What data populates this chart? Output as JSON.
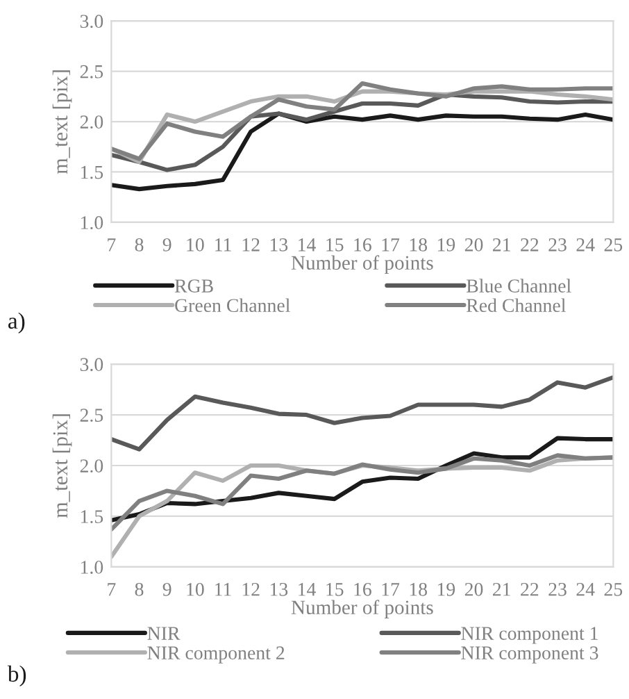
{
  "chart_data": [
    {
      "type": "line",
      "xlabel": "Number of points",
      "ylabel": "m_text [pix]",
      "categories": [
        "7",
        "8",
        "9",
        "10",
        "11",
        "12",
        "13",
        "14",
        "15",
        "16",
        "17",
        "18",
        "19",
        "20",
        "21",
        "22",
        "23",
        "24",
        "25"
      ],
      "ylim": [
        1.0,
        3.0
      ],
      "yticks": [
        {
          "value": 1.0,
          "label": "1.0"
        },
        {
          "value": 1.5,
          "label": "1.5"
        },
        {
          "value": 2.0,
          "label": "2.0"
        },
        {
          "value": 2.5,
          "label": "2.5"
        },
        {
          "value": 3.0,
          "label": "3.0"
        }
      ],
      "grid": "y",
      "legend": "bottom",
      "line_style": "solid",
      "annotations": [
        "a)"
      ],
      "series": [
        {
          "name": "RGB",
          "color": "#1a1a1a",
          "values": [
            1.37,
            1.33,
            1.36,
            1.38,
            1.42,
            1.9,
            2.08,
            2.0,
            2.05,
            2.02,
            2.06,
            2.02,
            2.06,
            2.05,
            2.05,
            2.03,
            2.02,
            2.07,
            2.02
          ]
        },
        {
          "name": "Blue Channel",
          "color": "#595959",
          "values": [
            1.67,
            1.6,
            1.52,
            1.57,
            1.75,
            2.05,
            2.08,
            2.02,
            2.1,
            2.18,
            2.18,
            2.16,
            2.27,
            2.25,
            2.24,
            2.2,
            2.19,
            2.2,
            2.2
          ]
        },
        {
          "name": "Green Channel",
          "color": "#b0b0b0",
          "values": [
            1.73,
            1.6,
            2.07,
            2.0,
            2.1,
            2.2,
            2.25,
            2.25,
            2.2,
            2.3,
            2.3,
            2.28,
            2.27,
            2.3,
            2.3,
            2.3,
            2.27,
            2.25,
            2.22
          ]
        },
        {
          "name": "Red Channel",
          "color": "#808080",
          "values": [
            1.73,
            1.63,
            1.98,
            1.9,
            1.85,
            2.05,
            2.22,
            2.15,
            2.12,
            2.38,
            2.32,
            2.28,
            2.25,
            2.33,
            2.35,
            2.32,
            2.32,
            2.33,
            2.33
          ]
        }
      ]
    },
    {
      "type": "line",
      "xlabel": "Number of points",
      "ylabel": "m_text [pix]",
      "categories": [
        "7",
        "8",
        "9",
        "10",
        "11",
        "12",
        "13",
        "14",
        "15",
        "16",
        "17",
        "18",
        "19",
        "20",
        "21",
        "22",
        "23",
        "24",
        "25"
      ],
      "ylim": [
        1.0,
        3.0
      ],
      "yticks": [
        {
          "value": 1.0,
          "label": "1.0"
        },
        {
          "value": 1.5,
          "label": "1.5"
        },
        {
          "value": 2.0,
          "label": "2.0"
        },
        {
          "value": 2.5,
          "label": "2.5"
        },
        {
          "value": 3.0,
          "label": "3.0"
        }
      ],
      "grid": "y",
      "legend": "bottom",
      "line_style": "solid",
      "annotations": [
        "b)"
      ],
      "series": [
        {
          "name": "NIR",
          "color": "#1a1a1a",
          "values": [
            1.46,
            1.52,
            1.63,
            1.62,
            1.65,
            1.68,
            1.73,
            1.7,
            1.67,
            1.84,
            1.88,
            1.87,
            2.0,
            2.12,
            2.08,
            2.08,
            2.27,
            2.26,
            2.26
          ]
        },
        {
          "name": "NIR component 1",
          "color": "#595959",
          "values": [
            2.26,
            2.16,
            2.45,
            2.68,
            2.62,
            2.57,
            2.51,
            2.5,
            2.42,
            2.47,
            2.49,
            2.6,
            2.6,
            2.6,
            2.58,
            2.65,
            2.82,
            2.77,
            2.87
          ]
        },
        {
          "name": "NIR component 2",
          "color": "#b0b0b0",
          "values": [
            1.1,
            1.5,
            1.65,
            1.93,
            1.85,
            2.0,
            2.0,
            1.95,
            1.92,
            2.0,
            1.98,
            1.95,
            1.97,
            1.98,
            1.98,
            1.95,
            2.05,
            2.07,
            2.08
          ]
        },
        {
          "name": "NIR component 3",
          "color": "#808080",
          "values": [
            1.37,
            1.65,
            1.75,
            1.7,
            1.62,
            1.9,
            1.87,
            1.95,
            1.92,
            2.01,
            1.96,
            1.93,
            1.97,
            2.07,
            2.05,
            2.0,
            2.1,
            2.07,
            2.08
          ]
        }
      ]
    }
  ]
}
